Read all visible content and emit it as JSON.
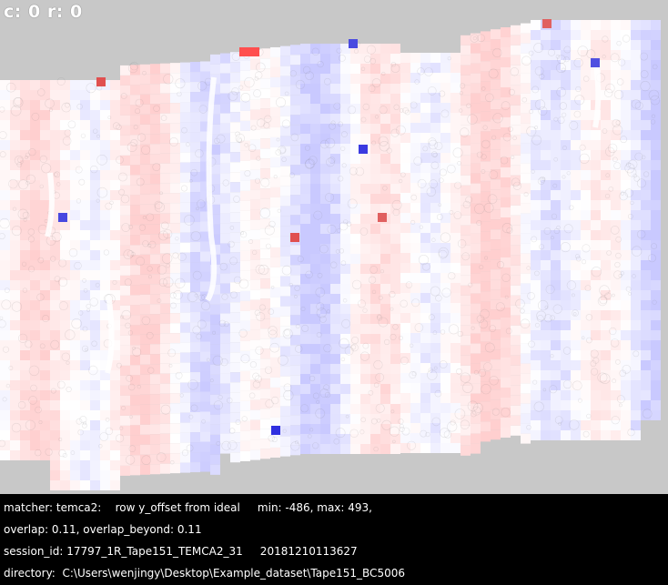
{
  "coord_readout": {
    "col_label": "c:",
    "col_value": "0",
    "row_label": "r:",
    "row_value": "0"
  },
  "info": {
    "line1": "matcher: temca2:    row y_offset from ideal     min: -486, max: 493,",
    "line2": "overlap: 0.11, overlap_beyond: 0.11",
    "line3": "session_id: 17797_1R_Tape151_TEMCA2_31     20181210113627",
    "line4": "directory:  C:\\Users\\wenjingy\\Desktop\\Example_dataset\\Tape151_BC5006"
  },
  "colors": {
    "background": "#c8c8c8",
    "panel": "#000000",
    "text": "#ffffff",
    "negative": "#4040e0",
    "positive": "#e04040",
    "neutral": "#ffffff"
  },
  "heatmap": {
    "metric": "row y_offset from ideal",
    "min": -486,
    "max": 493
  }
}
